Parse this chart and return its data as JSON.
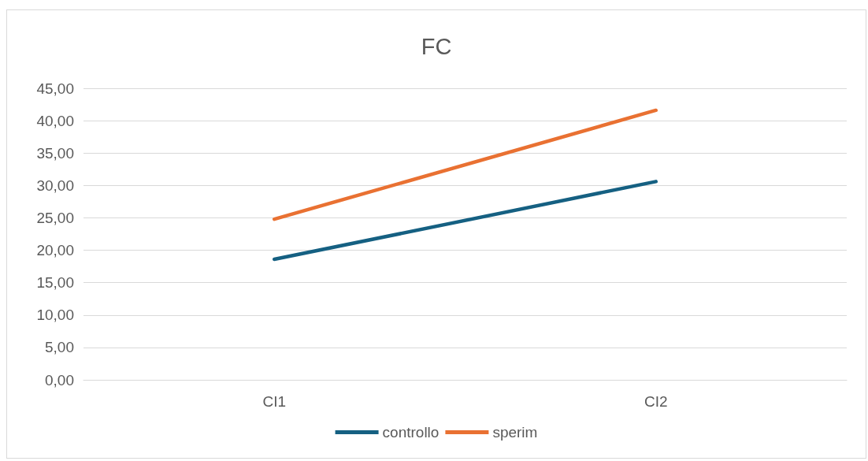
{
  "chart_data": {
    "type": "line",
    "title": "FC",
    "categories": [
      "CI1",
      "CI2"
    ],
    "series": [
      {
        "name": "controllo",
        "color": "#156082",
        "values": [
          18.6,
          30.6
        ]
      },
      {
        "name": "sperim",
        "color": "#e97132",
        "values": [
          24.8,
          41.6
        ]
      }
    ],
    "ylim": [
      0,
      45
    ],
    "yticks": [
      {
        "value": 0,
        "label": "0,00"
      },
      {
        "value": 5,
        "label": "5,00"
      },
      {
        "value": 10,
        "label": "10,00"
      },
      {
        "value": 15,
        "label": "15,00"
      },
      {
        "value": 20,
        "label": "20,00"
      },
      {
        "value": 25,
        "label": "25,00"
      },
      {
        "value": 30,
        "label": "30,00"
      },
      {
        "value": 35,
        "label": "35,00"
      },
      {
        "value": 40,
        "label": "40,00"
      },
      {
        "value": 45,
        "label": "45,00"
      }
    ],
    "grid": "y",
    "legend": "bottom",
    "marker": "none",
    "line_style": "solid"
  }
}
